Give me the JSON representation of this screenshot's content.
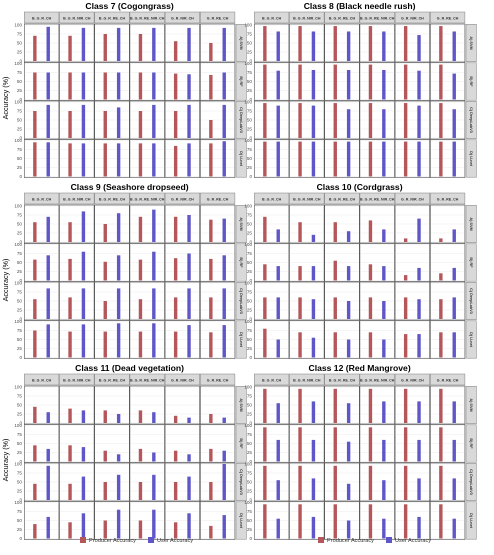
{
  "colors": {
    "producer": "#b5575a",
    "user": "#5f57c7",
    "strip_bg": "#d9d9d9",
    "panel_border": "#4d4d4d",
    "grid": "#ebebeb",
    "text": "#333333"
  },
  "labels": {
    "y_axis": "Accuracy (%)",
    "legend_producer": "Producer Accuracy",
    "legend_user": "User Accuracy"
  },
  "chart_data": [
    {
      "type": "bar",
      "title": "Class 7 (Cogongrass)",
      "ylabel": "Accuracy (%)",
      "ylim": [
        0,
        100
      ],
      "yticks": [
        0,
        25,
        50,
        75,
        100
      ],
      "columns": [
        "B_G_R_CH",
        "B_G_R_NIR_CH",
        "B_G_R_RE_CH",
        "B_G_R_RE_NIR_CH",
        "G_R_NIR_CH",
        "G_R_RE_CH"
      ],
      "rows": [
        "A) SVM",
        "B) RF",
        "C) DeepLabV3",
        "D) U-net"
      ],
      "series": [
        {
          "name": "Producer Accuracy",
          "values": [
            [
              70,
              70,
              75,
              75,
              55,
              50
            ],
            [
              75,
              75,
              75,
              75,
              72,
              68
            ],
            [
              75,
              75,
              75,
              75,
              75,
              50
            ],
            [
              95,
              92,
              92,
              92,
              85,
              92
            ]
          ]
        },
        {
          "name": "User Accuracy",
          "values": [
            [
              95,
              92,
              92,
              92,
              92,
              92
            ],
            [
              75,
              75,
              75,
              75,
              70,
              75
            ],
            [
              92,
              92,
              85,
              92,
              92,
              92
            ],
            [
              95,
              92,
              92,
              92,
              92,
              98
            ]
          ]
        }
      ]
    },
    {
      "type": "bar",
      "title": "Class 8 (Black needle rush)",
      "ylabel": "Accuracy (%)",
      "ylim": [
        0,
        100
      ],
      "yticks": [
        0,
        25,
        50,
        75,
        100
      ],
      "columns": [
        "B_G_R_CH",
        "B_G_R_NIR_CH",
        "B_G_R_RE_CH",
        "B_G_R_RE_NIR_CH",
        "G_R_NIR_CH",
        "G_R_RE_CH"
      ],
      "rows": [
        "A) SVM",
        "B) RF",
        "C) DeepLabV3",
        "D) U-net"
      ],
      "series": [
        {
          "name": "Producer Accuracy",
          "values": [
            [
              97,
              97,
              97,
              97,
              97,
              97
            ],
            [
              97,
              97,
              97,
              97,
              97,
              97
            ],
            [
              97,
              97,
              97,
              97,
              97,
              97
            ],
            [
              97,
              97,
              97,
              97,
              97,
              97
            ]
          ]
        },
        {
          "name": "User Accuracy",
          "values": [
            [
              82,
              82,
              82,
              82,
              72,
              82
            ],
            [
              80,
              82,
              82,
              82,
              80,
              72
            ],
            [
              90,
              90,
              80,
              80,
              90,
              80
            ],
            [
              97,
              97,
              97,
              97,
              97,
              97
            ]
          ]
        }
      ]
    },
    {
      "type": "bar",
      "title": "Class 9 (Seashore dropseed)",
      "ylabel": "Accuracy (%)",
      "ylim": [
        0,
        100
      ],
      "yticks": [
        0,
        25,
        50,
        75,
        100
      ],
      "columns": [
        "B_G_R_CH",
        "B_G_R_NIR_CH",
        "B_G_R_RE_CH",
        "B_G_R_RE_NIR_CH",
        "G_R_NIR_CH",
        "G_R_RE_CH"
      ],
      "rows": [
        "A) SVM",
        "B) RF",
        "C) DeepLabV3",
        "D) U-net"
      ],
      "series": [
        {
          "name": "Producer Accuracy",
          "values": [
            [
              55,
              55,
              50,
              70,
              70,
              62
            ],
            [
              58,
              60,
              52,
              58,
              62,
              60
            ],
            [
              55,
              60,
              50,
              55,
              60,
              60
            ],
            [
              75,
              72,
              72,
              72,
              72,
              70
            ]
          ]
        },
        {
          "name": "User Accuracy",
          "values": [
            [
              70,
              85,
              80,
              90,
              75,
              65
            ],
            [
              70,
              80,
              70,
              80,
              75,
              70
            ],
            [
              85,
              85,
              85,
              85,
              85,
              85
            ],
            [
              92,
              92,
              95,
              95,
              90,
              90
            ]
          ]
        }
      ]
    },
    {
      "type": "bar",
      "title": "Class 10 (Cordgrass)",
      "ylabel": "Accuracy (%)",
      "ylim": [
        0,
        100
      ],
      "yticks": [
        0,
        25,
        50,
        75,
        100
      ],
      "columns": [
        "B_G_R_CH",
        "B_G_R_NIR_CH",
        "B_G_R_RE_CH",
        "B_G_R_RE_NIR_CH",
        "G_R_NIR_CH",
        "G_R_RE_CH"
      ],
      "rows": [
        "A) SVM",
        "B) RF",
        "C) DeepLabV3",
        "D) U-net"
      ],
      "series": [
        {
          "name": "Producer Accuracy",
          "values": [
            [
              70,
              55,
              55,
              60,
              10,
              10
            ],
            [
              45,
              40,
              55,
              45,
              15,
              20
            ],
            [
              60,
              60,
              60,
              60,
              60,
              55
            ],
            [
              80,
              70,
              70,
              70,
              65,
              70
            ]
          ]
        },
        {
          "name": "User Accuracy",
          "values": [
            [
              35,
              20,
              30,
              35,
              65,
              35
            ],
            [
              40,
              40,
              40,
              40,
              35,
              35
            ],
            [
              60,
              55,
              50,
              50,
              55,
              60
            ],
            [
              50,
              55,
              50,
              50,
              65,
              70
            ]
          ]
        }
      ]
    },
    {
      "type": "bar",
      "title": "Class 11 (Dead vegetation)",
      "ylabel": "Accuracy (%)",
      "ylim": [
        0,
        100
      ],
      "yticks": [
        0,
        25,
        50,
        75,
        100
      ],
      "columns": [
        "B_G_R_CH",
        "B_G_R_NIR_CH",
        "B_G_R_RE_CH",
        "B_G_R_RE_NIR_CH",
        "G_R_NIR_CH",
        "G_R_RE_CH"
      ],
      "rows": [
        "A) SVM",
        "B) RF",
        "C) DeepLabV3",
        "D) U-net"
      ],
      "series": [
        {
          "name": "Producer Accuracy",
          "values": [
            [
              45,
              40,
              35,
              35,
              20,
              25
            ],
            [
              45,
              45,
              30,
              35,
              30,
              35
            ],
            [
              45,
              45,
              50,
              50,
              50,
              50
            ],
            [
              40,
              45,
              50,
              50,
              45,
              35
            ]
          ]
        },
        {
          "name": "User Accuracy",
          "values": [
            [
              30,
              35,
              25,
              30,
              15,
              15
            ],
            [
              35,
              40,
              20,
              25,
              20,
              30
            ],
            [
              95,
              65,
              70,
              70,
              65,
              100
            ],
            [
              60,
              70,
              80,
              80,
              70,
              65
            ]
          ]
        }
      ]
    },
    {
      "type": "bar",
      "title": "Class 12 (Red Mangrove)",
      "ylabel": "Accuracy (%)",
      "ylim": [
        0,
        100
      ],
      "yticks": [
        0,
        25,
        50,
        75,
        100
      ],
      "columns": [
        "B_G_R_CH",
        "B_G_R_NIR_CH",
        "B_G_R_RE_CH",
        "B_G_R_RE_NIR_CH",
        "G_R_NIR_CH",
        "G_R_RE_CH"
      ],
      "rows": [
        "A) SVM",
        "B) RF",
        "C) DeepLabV3",
        "D) U-net"
      ],
      "series": [
        {
          "name": "Producer Accuracy",
          "values": [
            [
              95,
              95,
              95,
              95,
              95,
              95
            ],
            [
              95,
              95,
              95,
              95,
              95,
              95
            ],
            [
              95,
              95,
              95,
              95,
              95,
              95
            ],
            [
              95,
              95,
              95,
              95,
              95,
              95
            ]
          ]
        },
        {
          "name": "User Accuracy",
          "values": [
            [
              55,
              60,
              55,
              60,
              60,
              60
            ],
            [
              60,
              60,
              55,
              60,
              60,
              60
            ],
            [
              55,
              60,
              45,
              55,
              60,
              60
            ],
            [
              55,
              60,
              50,
              55,
              60,
              55
            ]
          ]
        }
      ]
    }
  ]
}
